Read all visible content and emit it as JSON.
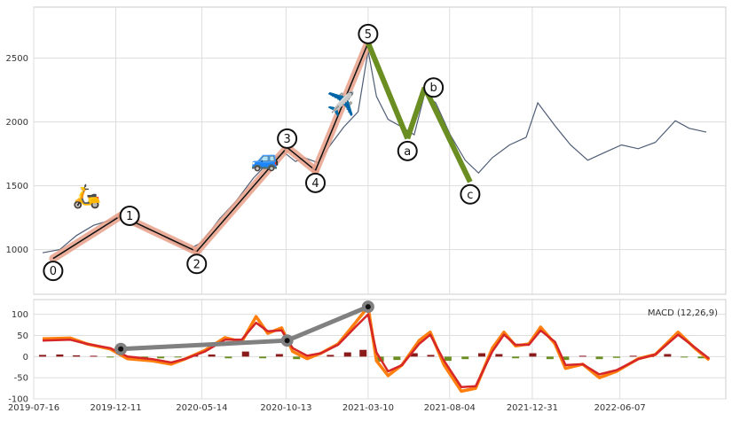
{
  "chart_data": [
    {
      "type": "line",
      "panel": "price",
      "title": "",
      "xlabel": "",
      "ylabel": "",
      "x_range": [
        "2019-07-16",
        "2022-12-15"
      ],
      "ylim": [
        650,
        2900
      ],
      "grid": true,
      "yticks": [
        1000,
        1500,
        2000,
        2500
      ],
      "xticks": [
        "2019-07-16",
        "2019-12-11",
        "2020-05-14",
        "2020-10-13",
        "2021-03-10",
        "2021-08-04",
        "2021-12-31",
        "2022-06-07"
      ],
      "price_line_color": "#4f5d75",
      "impulse_color": "#e8a08a",
      "corrective_color": "#6b8e23",
      "series": [
        {
          "values": [
            {
              "x": "2019-08-01",
              "y": 975
            },
            {
              "x": "2019-09-01",
              "y": 1000
            },
            {
              "x": "2019-10-01",
              "y": 1110
            },
            {
              "x": "2019-11-01",
              "y": 1190
            },
            {
              "x": "2019-12-01",
              "y": 1230
            },
            {
              "x": "2019-12-20",
              "y": 1265
            },
            {
              "x": "2020-01-20",
              "y": 1180
            },
            {
              "x": "2020-02-20",
              "y": 1140
            },
            {
              "x": "2020-03-20",
              "y": 1070
            },
            {
              "x": "2020-04-20",
              "y": 1000
            },
            {
              "x": "2020-05-15",
              "y": 1060
            },
            {
              "x": "2020-06-15",
              "y": 1240
            },
            {
              "x": "2020-07-15",
              "y": 1380
            },
            {
              "x": "2020-08-15",
              "y": 1560
            },
            {
              "x": "2020-09-15",
              "y": 1700
            },
            {
              "x": "2020-10-10",
              "y": 1760
            },
            {
              "x": "2020-10-30",
              "y": 1690
            },
            {
              "x": "2020-11-15",
              "y": 1720
            },
            {
              "x": "2020-12-10",
              "y": 1680
            },
            {
              "x": "2021-01-01",
              "y": 1820
            },
            {
              "x": "2021-01-25",
              "y": 1960
            },
            {
              "x": "2021-02-20",
              "y": 2080
            },
            {
              "x": "2021-03-10",
              "y": 2560
            },
            {
              "x": "2021-03-25",
              "y": 2200
            },
            {
              "x": "2021-04-15",
              "y": 2020
            },
            {
              "x": "2021-05-10",
              "y": 1960
            },
            {
              "x": "2021-06-01",
              "y": 1900
            },
            {
              "x": "2021-06-20",
              "y": 2220
            },
            {
              "x": "2021-07-10",
              "y": 2150
            },
            {
              "x": "2021-08-05",
              "y": 1900
            },
            {
              "x": "2021-09-01",
              "y": 1700
            },
            {
              "x": "2021-09-25",
              "y": 1600
            },
            {
              "x": "2021-10-20",
              "y": 1720
            },
            {
              "x": "2021-11-20",
              "y": 1820
            },
            {
              "x": "2021-12-20",
              "y": 1880
            },
            {
              "x": "2022-01-10",
              "y": 2150
            },
            {
              "x": "2022-02-10",
              "y": 1970
            },
            {
              "x": "2022-03-10",
              "y": 1820
            },
            {
              "x": "2022-04-10",
              "y": 1700
            },
            {
              "x": "2022-05-10",
              "y": 1760
            },
            {
              "x": "2022-06-10",
              "y": 1820
            },
            {
              "x": "2022-07-10",
              "y": 1790
            },
            {
              "x": "2022-08-10",
              "y": 1840
            },
            {
              "x": "2022-09-15",
              "y": 2010
            },
            {
              "x": "2022-10-10",
              "y": 1950
            },
            {
              "x": "2022-11-10",
              "y": 1920
            }
          ]
        }
      ],
      "wave_points": [
        {
          "label": "0",
          "x": "2019-08-20",
          "y": 930,
          "label_pos": "below"
        },
        {
          "label": "1",
          "x": "2019-12-20",
          "y": 1265,
          "label_pos": "right"
        },
        {
          "label": "2",
          "x": "2020-05-05",
          "y": 985,
          "label_pos": "below"
        },
        {
          "label": "3",
          "x": "2020-10-15",
          "y": 1800,
          "label_pos": "above"
        },
        {
          "label": "4",
          "x": "2020-12-05",
          "y": 1620,
          "label_pos": "below"
        },
        {
          "label": "5",
          "x": "2021-03-10",
          "y": 2620,
          "label_pos": "above"
        },
        {
          "label": "a",
          "x": "2021-05-20",
          "y": 1870,
          "label_pos": "below"
        },
        {
          "label": "b",
          "x": "2021-06-20",
          "y": 2270,
          "label_pos": "right"
        },
        {
          "label": "c",
          "x": "2021-09-10",
          "y": 1530,
          "label_pos": "below"
        }
      ],
      "icons": [
        {
          "name": "scooter-icon",
          "glyph": "🛵",
          "x": "2019-10-20",
          "y": 1360
        },
        {
          "name": "car-icon",
          "glyph": "🚙",
          "x": "2020-09-05",
          "y": 1650
        },
        {
          "name": "airplane-icon",
          "glyph": "✈️",
          "x": "2021-01-20",
          "y": 2080
        }
      ]
    },
    {
      "type": "line",
      "panel": "macd",
      "title": "",
      "legend_text": "MACD (12,26,9)",
      "legend_position": "top-right",
      "ylim": [
        -100,
        135
      ],
      "yticks": [
        -100,
        -50,
        0,
        50,
        100
      ],
      "grid": true,
      "macd_color": "#ff7f0e",
      "signal_color": "#d62728",
      "hist_pos_color": "#8b1a1a",
      "hist_neg_color": "#6b8e23",
      "divergence_color": "#808080",
      "macd": [
        {
          "x": "2019-08-01",
          "y": 42
        },
        {
          "x": "2019-09-20",
          "y": 44
        },
        {
          "x": "2019-10-20",
          "y": 30
        },
        {
          "x": "2019-12-01",
          "y": 18
        },
        {
          "x": "2020-01-01",
          "y": -5
        },
        {
          "x": "2020-02-15",
          "y": -10
        },
        {
          "x": "2020-03-20",
          "y": -18
        },
        {
          "x": "2020-04-15",
          "y": -5
        },
        {
          "x": "2020-05-20",
          "y": 15
        },
        {
          "x": "2020-06-25",
          "y": 45
        },
        {
          "x": "2020-07-25",
          "y": 35
        },
        {
          "x": "2020-08-20",
          "y": 95
        },
        {
          "x": "2020-09-10",
          "y": 55
        },
        {
          "x": "2020-10-05",
          "y": 68
        },
        {
          "x": "2020-10-25",
          "y": 12
        },
        {
          "x": "2020-11-20",
          "y": -5
        },
        {
          "x": "2020-12-15",
          "y": 8
        },
        {
          "x": "2021-01-15",
          "y": 30
        },
        {
          "x": "2021-02-15",
          "y": 80
        },
        {
          "x": "2021-03-10",
          "y": 118
        },
        {
          "x": "2021-03-25",
          "y": -10
        },
        {
          "x": "2021-04-15",
          "y": -45
        },
        {
          "x": "2021-05-10",
          "y": -20
        },
        {
          "x": "2021-06-10",
          "y": 38
        },
        {
          "x": "2021-06-30",
          "y": 58
        },
        {
          "x": "2021-07-25",
          "y": -20
        },
        {
          "x": "2021-08-25",
          "y": -82
        },
        {
          "x": "2021-09-20",
          "y": -75
        },
        {
          "x": "2021-10-20",
          "y": 20
        },
        {
          "x": "2021-11-10",
          "y": 58
        },
        {
          "x": "2021-12-01",
          "y": 25
        },
        {
          "x": "2021-12-25",
          "y": 30
        },
        {
          "x": "2022-01-15",
          "y": 70
        },
        {
          "x": "2022-02-10",
          "y": 30
        },
        {
          "x": "2022-03-01",
          "y": -28
        },
        {
          "x": "2022-04-01",
          "y": -18
        },
        {
          "x": "2022-05-01",
          "y": -50
        },
        {
          "x": "2022-06-01",
          "y": -35
        },
        {
          "x": "2022-07-10",
          "y": -5
        },
        {
          "x": "2022-08-10",
          "y": 5
        },
        {
          "x": "2022-09-20",
          "y": 58
        },
        {
          "x": "2022-10-20",
          "y": 20
        },
        {
          "x": "2022-11-15",
          "y": -8
        }
      ],
      "signal": [
        {
          "x": "2019-08-01",
          "y": 38
        },
        {
          "x": "2019-09-20",
          "y": 40
        },
        {
          "x": "2019-10-20",
          "y": 30
        },
        {
          "x": "2019-12-01",
          "y": 20
        },
        {
          "x": "2020-01-01",
          "y": 0
        },
        {
          "x": "2020-02-15",
          "y": -6
        },
        {
          "x": "2020-03-20",
          "y": -14
        },
        {
          "x": "2020-04-15",
          "y": -5
        },
        {
          "x": "2020-05-20",
          "y": 12
        },
        {
          "x": "2020-06-25",
          "y": 40
        },
        {
          "x": "2020-07-25",
          "y": 40
        },
        {
          "x": "2020-08-20",
          "y": 80
        },
        {
          "x": "2020-09-10",
          "y": 60
        },
        {
          "x": "2020-10-05",
          "y": 62
        },
        {
          "x": "2020-10-25",
          "y": 20
        },
        {
          "x": "2020-11-20",
          "y": 2
        },
        {
          "x": "2020-12-15",
          "y": 8
        },
        {
          "x": "2021-01-15",
          "y": 28
        },
        {
          "x": "2021-02-15",
          "y": 70
        },
        {
          "x": "2021-03-10",
          "y": 100
        },
        {
          "x": "2021-03-25",
          "y": 10
        },
        {
          "x": "2021-04-15",
          "y": -35
        },
        {
          "x": "2021-05-10",
          "y": -20
        },
        {
          "x": "2021-06-10",
          "y": 30
        },
        {
          "x": "2021-06-30",
          "y": 52
        },
        {
          "x": "2021-07-25",
          "y": -10
        },
        {
          "x": "2021-08-25",
          "y": -72
        },
        {
          "x": "2021-09-20",
          "y": -70
        },
        {
          "x": "2021-10-20",
          "y": 12
        },
        {
          "x": "2021-11-10",
          "y": 52
        },
        {
          "x": "2021-12-01",
          "y": 28
        },
        {
          "x": "2021-12-25",
          "y": 28
        },
        {
          "x": "2022-01-15",
          "y": 62
        },
        {
          "x": "2022-02-10",
          "y": 35
        },
        {
          "x": "2022-03-01",
          "y": -20
        },
        {
          "x": "2022-04-01",
          "y": -18
        },
        {
          "x": "2022-05-01",
          "y": -42
        },
        {
          "x": "2022-06-01",
          "y": -32
        },
        {
          "x": "2022-07-10",
          "y": -6
        },
        {
          "x": "2022-08-10",
          "y": 5
        },
        {
          "x": "2022-09-20",
          "y": 52
        },
        {
          "x": "2022-10-20",
          "y": 22
        },
        {
          "x": "2022-11-15",
          "y": -5
        }
      ],
      "histogram": [
        {
          "x": "2019-08-01",
          "y": 4
        },
        {
          "x": "2019-09-01",
          "y": 5
        },
        {
          "x": "2019-10-01",
          "y": 3
        },
        {
          "x": "2019-11-01",
          "y": 2
        },
        {
          "x": "2019-12-01",
          "y": -2
        },
        {
          "x": "2020-01-01",
          "y": -4
        },
        {
          "x": "2020-02-01",
          "y": -3
        },
        {
          "x": "2020-03-01",
          "y": -4
        },
        {
          "x": "2020-04-01",
          "y": -2
        },
        {
          "x": "2020-05-01",
          "y": 3
        },
        {
          "x": "2020-06-01",
          "y": 5
        },
        {
          "x": "2020-07-01",
          "y": -4
        },
        {
          "x": "2020-08-01",
          "y": 12
        },
        {
          "x": "2020-09-01",
          "y": -4
        },
        {
          "x": "2020-10-01",
          "y": 6
        },
        {
          "x": "2020-11-01",
          "y": -6
        },
        {
          "x": "2020-12-01",
          "y": 4
        },
        {
          "x": "2021-01-01",
          "y": 4
        },
        {
          "x": "2021-02-01",
          "y": 10
        },
        {
          "x": "2021-03-01",
          "y": 16
        },
        {
          "x": "2021-04-01",
          "y": -12
        },
        {
          "x": "2021-05-01",
          "y": -8
        },
        {
          "x": "2021-06-01",
          "y": 8
        },
        {
          "x": "2021-07-01",
          "y": 4
        },
        {
          "x": "2021-08-01",
          "y": -10
        },
        {
          "x": "2021-09-01",
          "y": -6
        },
        {
          "x": "2021-10-01",
          "y": 8
        },
        {
          "x": "2021-11-01",
          "y": 6
        },
        {
          "x": "2021-12-01",
          "y": -4
        },
        {
          "x": "2022-01-01",
          "y": 8
        },
        {
          "x": "2022-02-01",
          "y": -6
        },
        {
          "x": "2022-03-01",
          "y": -8
        },
        {
          "x": "2022-04-01",
          "y": 2
        },
        {
          "x": "2022-05-01",
          "y": -6
        },
        {
          "x": "2022-06-01",
          "y": -3
        },
        {
          "x": "2022-07-01",
          "y": 2
        },
        {
          "x": "2022-08-01",
          "y": 1
        },
        {
          "x": "2022-09-01",
          "y": 6
        },
        {
          "x": "2022-10-01",
          "y": -2
        },
        {
          "x": "2022-11-01",
          "y": -4
        }
      ],
      "divergence_points": [
        {
          "x": "2019-12-20",
          "y": 18
        },
        {
          "x": "2020-10-15",
          "y": 38
        },
        {
          "x": "2021-03-10",
          "y": 118
        }
      ]
    }
  ]
}
